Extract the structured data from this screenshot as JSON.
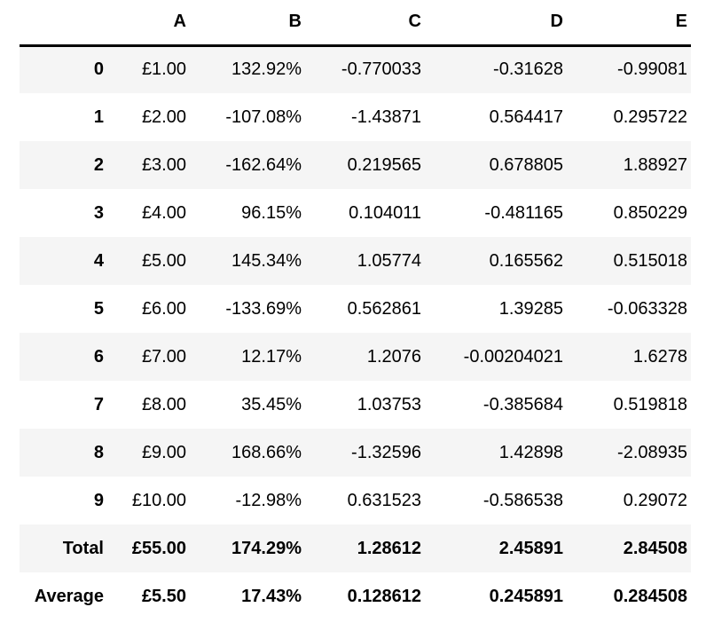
{
  "table": {
    "index_header": "",
    "columns": [
      "A",
      "B",
      "C",
      "D",
      "E"
    ],
    "rows": [
      {
        "index": "0",
        "striped": true,
        "bold": false,
        "cells": [
          "£1.00",
          "132.92%",
          "-0.770033",
          "-0.31628",
          "-0.99081"
        ]
      },
      {
        "index": "1",
        "striped": false,
        "bold": false,
        "cells": [
          "£2.00",
          "-107.08%",
          "-1.43871",
          "0.564417",
          "0.295722"
        ]
      },
      {
        "index": "2",
        "striped": true,
        "bold": false,
        "cells": [
          "£3.00",
          "-162.64%",
          "0.219565",
          "0.678805",
          "1.88927"
        ]
      },
      {
        "index": "3",
        "striped": false,
        "bold": false,
        "cells": [
          "£4.00",
          "96.15%",
          "0.104011",
          "-0.481165",
          "0.850229"
        ]
      },
      {
        "index": "4",
        "striped": true,
        "bold": false,
        "cells": [
          "£5.00",
          "145.34%",
          "1.05774",
          "0.165562",
          "0.515018"
        ]
      },
      {
        "index": "5",
        "striped": false,
        "bold": false,
        "cells": [
          "£6.00",
          "-133.69%",
          "0.562861",
          "1.39285",
          "-0.063328"
        ]
      },
      {
        "index": "6",
        "striped": true,
        "bold": false,
        "cells": [
          "£7.00",
          "12.17%",
          "1.2076",
          "-0.00204021",
          "1.6278"
        ]
      },
      {
        "index": "7",
        "striped": false,
        "bold": false,
        "cells": [
          "£8.00",
          "35.45%",
          "1.03753",
          "-0.385684",
          "0.519818"
        ]
      },
      {
        "index": "8",
        "striped": true,
        "bold": false,
        "cells": [
          "£9.00",
          "168.66%",
          "-1.32596",
          "1.42898",
          "-2.08935"
        ]
      },
      {
        "index": "9",
        "striped": false,
        "bold": false,
        "cells": [
          "£10.00",
          "-12.98%",
          "0.631523",
          "-0.586538",
          "0.29072"
        ]
      },
      {
        "index": "Total",
        "striped": true,
        "bold": true,
        "cells": [
          "£55.00",
          "174.29%",
          "1.28612",
          "2.45891",
          "2.84508"
        ]
      },
      {
        "index": "Average",
        "striped": false,
        "bold": true,
        "cells": [
          "£5.50",
          "17.43%",
          "0.128612",
          "0.245891",
          "0.284508"
        ]
      }
    ],
    "colors": {
      "stripe_background": "#f5f5f5",
      "row_background": "#ffffff",
      "header_border": "#000000",
      "text": "#000000"
    }
  }
}
